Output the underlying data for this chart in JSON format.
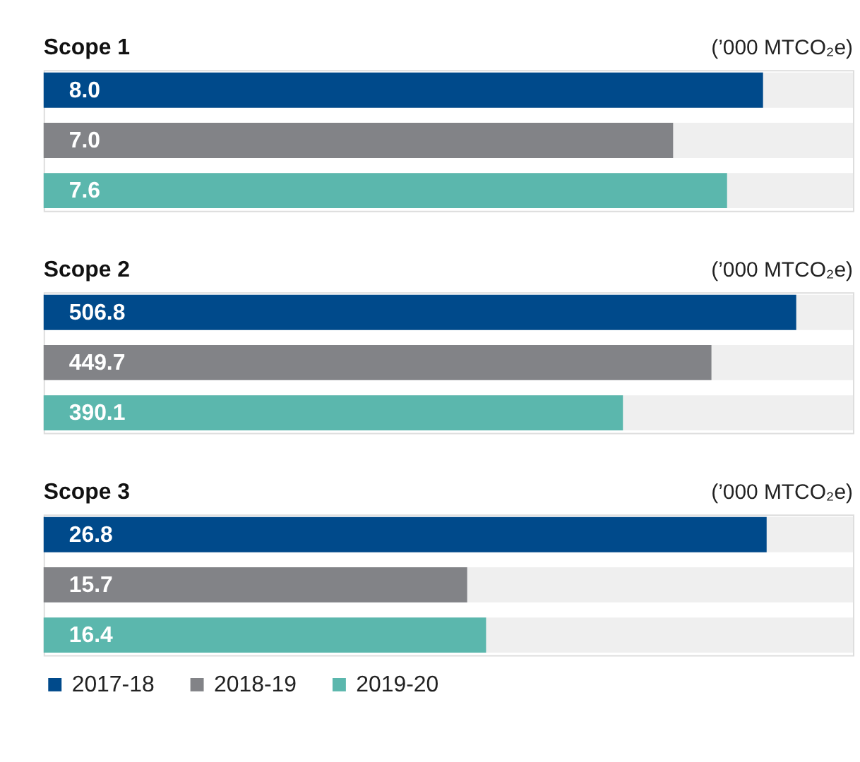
{
  "chart_data": [
    {
      "type": "bar",
      "orientation": "horizontal",
      "title": "Scope 1",
      "annotations": [
        "(’000 MTCO₂e)"
      ],
      "categories": [
        null
      ],
      "xlim": [
        0,
        9
      ],
      "tick_labels": false,
      "legend": "bottom",
      "series": [
        {
          "name": "2017-18",
          "color": "#004a8b",
          "values": [
            8.0
          ],
          "value_labels": [
            "8.0"
          ]
        },
        {
          "name": "2018-19",
          "color": "#828387",
          "values": [
            7.0
          ],
          "value_labels": [
            "7.0"
          ]
        },
        {
          "name": "2019-20",
          "color": "#5bb7ad",
          "values": [
            7.6
          ],
          "value_labels": [
            "7.6"
          ]
        }
      ]
    },
    {
      "type": "bar",
      "orientation": "horizontal",
      "title": "Scope 2",
      "annotations": [
        "(’000 MTCO₂e)"
      ],
      "categories": [
        null
      ],
      "xlim": [
        0,
        545
      ],
      "tick_labels": false,
      "legend": "bottom",
      "series": [
        {
          "name": "2017-18",
          "color": "#004a8b",
          "values": [
            506.8
          ],
          "value_labels": [
            "506.8"
          ]
        },
        {
          "name": "2018-19",
          "color": "#828387",
          "values": [
            449.7
          ],
          "value_labels": [
            "449.7"
          ]
        },
        {
          "name": "2019-20",
          "color": "#5bb7ad",
          "values": [
            390.1
          ],
          "value_labels": [
            "390.1"
          ]
        }
      ]
    },
    {
      "type": "bar",
      "orientation": "horizontal",
      "title": "Scope 3",
      "annotations": [
        "(’000 MTCO₂e)"
      ],
      "categories": [
        null
      ],
      "xlim": [
        0,
        30
      ],
      "tick_labels": false,
      "legend": "bottom",
      "series": [
        {
          "name": "2017-18",
          "color": "#004a8b",
          "values": [
            26.8
          ],
          "value_labels": [
            "26.8"
          ]
        },
        {
          "name": "2018-19",
          "color": "#828387",
          "values": [
            15.7
          ],
          "value_labels": [
            "15.7"
          ]
        },
        {
          "name": "2019-20",
          "color": "#5bb7ad",
          "values": [
            16.4
          ],
          "value_labels": [
            "16.4"
          ]
        }
      ]
    }
  ]
}
